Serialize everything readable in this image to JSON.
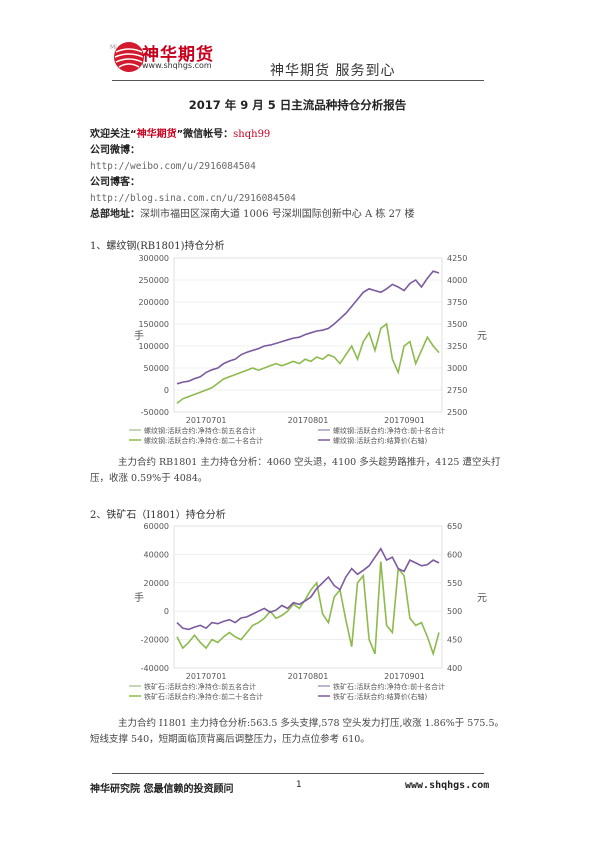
{
  "header": {
    "logo_text": "神华期货",
    "logo_mini": "Mi",
    "logo_url": "www.shqhgs.com",
    "slogan": "神华期货   服务到心"
  },
  "title": "2017 年 9 月 5 日主流品种持仓分析报告",
  "contact": {
    "follow_prefix": "欢迎关注“",
    "follow_brand": "神华期货",
    "follow_suffix": "”微信帐号：",
    "wechat_id": "shqh99",
    "weibo_label": "公司微博：",
    "weibo_url": "http://weibo.com/u/2916084504",
    "blog_label": "公司博客：",
    "blog_url": "http://blog.sina.com.cn/u/2916084504",
    "address_label": "总部地址：",
    "address": "深圳市福田区深南大道 1006 号深圳国际创新中心 A 栋 27 楼"
  },
  "sections": [
    {
      "heading": "1、螺纹钢(RB1801)持仓分析",
      "analysis": "主力合约 RB1801 主力持仓分析：4060 空头退，4100 多头趁势路推升，4125 遭空头打压，收涨 0.59%于 4084。"
    },
    {
      "heading": "2、铁矿石（I1801）持仓分析",
      "analysis": "主力合约 I1801 主力持仓分析:563.5 多头支撑,578 空头发力打压,收涨 1.86%于 575.5。短线支撑 540，短期面临顶背离后调整压力，压力点位参考 610。"
    }
  ],
  "chart_data": [
    {
      "type": "line",
      "x_ticks": [
        "20170701",
        "20170801",
        "20170901"
      ],
      "ylabel": "手",
      "ylabel_right": "元",
      "ylim": [
        -50000,
        300000
      ],
      "ylim_right": [
        2500,
        4250
      ],
      "y_ticks": [
        "-50000",
        "0",
        "50000",
        "100000",
        "150000",
        "200000",
        "250000",
        "300000"
      ],
      "y_ticks_right": [
        "2500",
        "2750",
        "3000",
        "3250",
        "3500",
        "3750",
        "4000",
        "4250"
      ],
      "legend": [
        "螺纹钢:活跃合约:净持仓:前五名合计",
        "螺纹钢:活跃合约:净持仓:前十名合计",
        "螺纹钢:活跃合约:净持仓:前二十名合计",
        "螺纹钢:活跃合约:结算价(右轴)"
      ],
      "series": [
        {
          "name": "螺纹钢:活跃合约:净持仓:前二十名合计",
          "color": "#8dba4c",
          "axis": "left",
          "values": [
            -30000,
            -20000,
            -15000,
            -10000,
            -5000,
            0,
            5000,
            15000,
            25000,
            30000,
            35000,
            40000,
            45000,
            50000,
            45000,
            50000,
            55000,
            60000,
            55000,
            60000,
            65000,
            60000,
            70000,
            65000,
            75000,
            70000,
            80000,
            75000,
            60000,
            80000,
            100000,
            70000,
            110000,
            130000,
            90000,
            140000,
            150000,
            70000,
            40000,
            100000,
            110000,
            60000,
            90000,
            120000,
            100000,
            85000
          ]
        },
        {
          "name": "螺纹钢:活跃合约:结算价(右轴)",
          "color": "#7b5a9e",
          "axis": "right",
          "values": [
            2820,
            2840,
            2850,
            2880,
            2900,
            2950,
            2980,
            3000,
            3050,
            3080,
            3100,
            3150,
            3180,
            3200,
            3220,
            3250,
            3260,
            3280,
            3300,
            3320,
            3340,
            3350,
            3380,
            3400,
            3420,
            3430,
            3450,
            3500,
            3560,
            3620,
            3700,
            3780,
            3860,
            3900,
            3880,
            3860,
            3900,
            3950,
            3920,
            3880,
            3960,
            4000,
            3920,
            4020,
            4100,
            4080
          ]
        }
      ]
    },
    {
      "type": "line",
      "x_ticks": [
        "20170701",
        "20170801",
        "20170901"
      ],
      "ylabel": "手",
      "ylabel_right": "元",
      "ylim": [
        -40000,
        60000
      ],
      "ylim_right": [
        400,
        650
      ],
      "y_ticks": [
        "-40000",
        "-20000",
        "0",
        "20000",
        "40000",
        "60000"
      ],
      "y_ticks_right": [
        "400",
        "450",
        "500",
        "550",
        "600",
        "650"
      ],
      "legend": [
        "铁矿石:活跃合约:净持仓:前五名合计",
        "铁矿石:活跃合约:净持仓:前十名合计",
        "铁矿石:活跃合约:净持仓:前二十名合计",
        "铁矿石:活跃合约:结算价(右轴)"
      ],
      "series": [
        {
          "name": "铁矿石:活跃合约:净持仓:前二十名合计",
          "color": "#8dba4c",
          "axis": "left",
          "values": [
            -18000,
            -26000,
            -22000,
            -17000,
            -22000,
            -26000,
            -20000,
            -22000,
            -18000,
            -15000,
            -18000,
            -20000,
            -15000,
            -10000,
            -8000,
            -5000,
            0,
            -5000,
            -3000,
            0,
            5000,
            2000,
            8000,
            15000,
            20000,
            -2000,
            -8000,
            10000,
            15000,
            -6000,
            -25000,
            20000,
            25000,
            -20000,
            -30000,
            35000,
            -10000,
            -15000,
            30000,
            25000,
            -5000,
            -10000,
            -8000,
            -18000,
            -30000,
            -15000
          ]
        },
        {
          "name": "铁矿石:活跃合约:结算价(右轴)",
          "color": "#7b5a9e",
          "axis": "right",
          "values": [
            480,
            470,
            468,
            472,
            475,
            470,
            480,
            478,
            482,
            485,
            480,
            488,
            490,
            495,
            500,
            505,
            498,
            502,
            510,
            505,
            515,
            512,
            518,
            525,
            540,
            550,
            560,
            545,
            538,
            560,
            575,
            565,
            572,
            580,
            595,
            610,
            590,
            595,
            575,
            570,
            590,
            585,
            580,
            582,
            590,
            585
          ]
        }
      ]
    }
  ],
  "footer": {
    "left": "神华研究院   您最信赖的投资顾问",
    "page_num": "1",
    "right": "www.shqhgs.com"
  },
  "colors": {
    "brand_red": "#c8001e",
    "series_green": "#8dba4c",
    "series_purple": "#7b5a9e"
  }
}
